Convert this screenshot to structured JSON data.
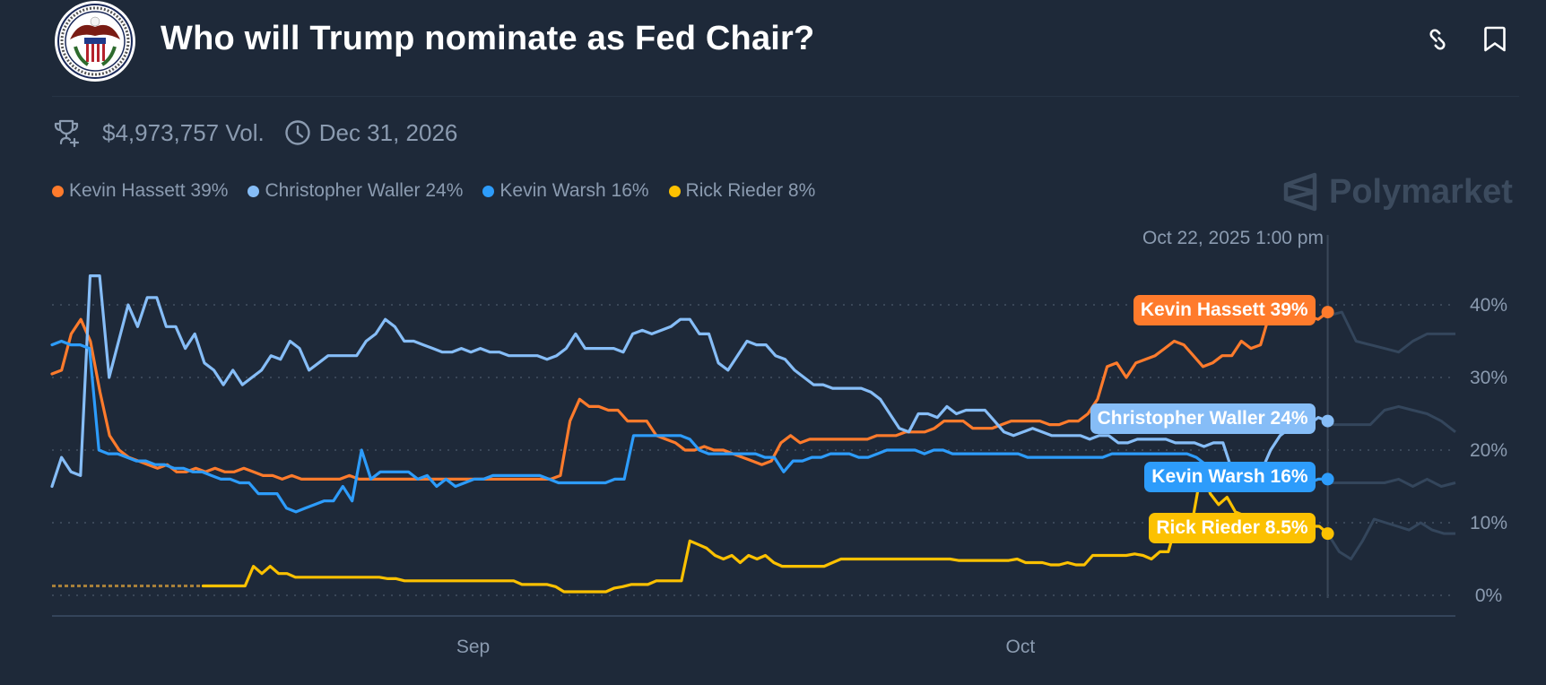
{
  "header": {
    "title": "Who will Trump nominate as Fed Chair?",
    "logo_alt": "Board of Governors of the Federal Reserve System seal",
    "icons": [
      "link-icon",
      "bookmark-icon"
    ]
  },
  "meta": {
    "volume": "$4,973,757 Vol.",
    "end_date": "Dec 31, 2026",
    "icons": [
      "trophy-icon",
      "clock-icon"
    ]
  },
  "brand": {
    "name": "Polymarket"
  },
  "legend": [
    {
      "label": "Kevin Hassett 39%",
      "color": "#ff7b2c"
    },
    {
      "label": "Christopher Waller 24%",
      "color": "#86bdf7"
    },
    {
      "label": "Kevin Warsh 16%",
      "color": "#2d9cfb"
    },
    {
      "label": "Rick Rieder 8%",
      "color": "#fcc101"
    }
  ],
  "crosshair": {
    "date": "Oct 22, 2025 1:00 pm",
    "tags": [
      {
        "label": "Kevin Hassett 39%",
        "color": "#ff7b2c",
        "value": 39
      },
      {
        "label": "Christopher Waller 24%",
        "color": "#86bdf7",
        "value": 24
      },
      {
        "label": "Kevin Warsh 16%",
        "color": "#2d9cfb",
        "value": 16
      },
      {
        "label": "Rick Rieder 8.5%",
        "color": "#fcc101",
        "value": 8.5
      }
    ]
  },
  "chart_data": {
    "type": "line",
    "title": "Who will Trump nominate as Fed Chair?",
    "xlabel": "",
    "ylabel": "",
    "ylim": [
      0,
      42
    ],
    "yticks": [
      "0%",
      "10%",
      "20%",
      "30%",
      "40%"
    ],
    "ytick_values": [
      0,
      10,
      20,
      30,
      40
    ],
    "xticks": [
      "Sep",
      "Oct"
    ],
    "xtick_positions": [
      0.3,
      0.69
    ],
    "grid": true,
    "legend_position": "top-left",
    "crosshair_fraction": 0.909,
    "series": [
      {
        "name": "Kevin Hassett",
        "color": "#ff7b2c",
        "values": [
          30.5,
          31,
          36,
          38,
          35,
          28,
          22,
          20,
          19,
          18.5,
          18,
          17.5,
          18,
          17,
          17,
          17.5,
          17,
          17.5,
          17,
          17,
          17.5,
          17,
          16.5,
          16.5,
          16,
          16.5,
          16,
          16,
          16,
          16,
          16,
          16.5,
          16,
          16,
          16,
          16,
          16,
          16,
          16,
          16,
          16,
          16,
          16,
          16,
          16,
          16,
          16,
          16,
          16,
          16,
          16,
          16,
          16,
          16.5,
          24,
          27,
          26,
          26,
          25.5,
          25.5,
          24,
          24,
          24,
          22,
          21.5,
          21,
          20,
          20,
          20.5,
          20,
          20,
          19.5,
          19,
          18.5,
          18,
          18.5,
          21,
          22,
          21,
          21.5,
          21.5,
          21.5,
          21.5,
          21.5,
          21.5,
          21.5,
          22,
          22,
          22,
          22.5,
          22.5,
          22.5,
          23,
          24,
          24,
          24,
          23,
          23,
          23,
          23.5,
          24,
          24,
          24,
          24,
          23.5,
          23.5,
          24,
          24,
          25,
          27,
          31.5,
          32,
          30,
          32,
          32.5,
          33,
          34,
          35,
          34.5,
          33,
          31.5,
          32,
          33,
          33,
          35,
          34,
          34.5,
          39,
          39,
          39,
          39,
          38.5,
          38,
          39
        ],
        "after_values": [
          38.5,
          39,
          35,
          34.5,
          34,
          33.5,
          35,
          36,
          36,
          36
        ]
      },
      {
        "name": "Christopher Waller",
        "color": "#86bdf7",
        "values": [
          15,
          19,
          17,
          16.5,
          44,
          44,
          30,
          35,
          40,
          37,
          41,
          41,
          37,
          37,
          34,
          36,
          32,
          31,
          29,
          31,
          29,
          30,
          31,
          33,
          32.5,
          35,
          34,
          31,
          32,
          33,
          33,
          33,
          33,
          35,
          36,
          38,
          37,
          35,
          35,
          34.5,
          34,
          33.5,
          33.5,
          34,
          33.5,
          34,
          33.5,
          33.5,
          33,
          33,
          33,
          33,
          32.5,
          33,
          34,
          36,
          34,
          34,
          34,
          34,
          33.5,
          36,
          36.5,
          36,
          36.5,
          37,
          38,
          38,
          36,
          36,
          32,
          31,
          33,
          35,
          34.5,
          34.5,
          33,
          32.5,
          31,
          30,
          29,
          29,
          28.5,
          28.5,
          28.5,
          28.5,
          28,
          27,
          25,
          23,
          22.5,
          25,
          25,
          24.5,
          26,
          25,
          25.5,
          25.5,
          25.5,
          24,
          22.5,
          22,
          22.5,
          23,
          22.5,
          22,
          22,
          22,
          22,
          21.5,
          22,
          22,
          21,
          21,
          21.5,
          21.5,
          21.5,
          21.5,
          21,
          21,
          21,
          20.5,
          21,
          21,
          17,
          15,
          15,
          17,
          20,
          22,
          23,
          23,
          23.5,
          24.5,
          24
        ],
        "after_values": [
          23.5,
          23.5,
          23.5,
          23.5,
          25.5,
          26,
          25.5,
          25,
          24,
          22.5
        ]
      },
      {
        "name": "Kevin Warsh",
        "color": "#2d9cfb",
        "values": [
          34.5,
          35,
          34.5,
          34.5,
          34,
          20,
          19.5,
          19.5,
          19,
          18.5,
          18.5,
          18,
          18,
          17.5,
          17.5,
          17,
          17,
          16.5,
          16,
          16,
          15.5,
          15.5,
          14,
          14,
          14,
          12,
          11.5,
          12,
          12.5,
          13,
          13,
          15,
          13,
          20,
          16,
          17,
          17,
          17,
          17,
          16,
          16.5,
          15,
          16,
          15,
          15.5,
          16,
          16,
          16.5,
          16.5,
          16.5,
          16.5,
          16.5,
          16.5,
          16,
          15.5,
          15.5,
          15.5,
          15.5,
          15.5,
          15.5,
          16,
          16,
          22,
          22,
          22,
          22,
          22,
          22,
          21.5,
          20,
          19.5,
          19.5,
          19.5,
          19.5,
          19.5,
          19.5,
          19,
          19,
          17,
          18.5,
          18.5,
          19,
          19,
          19.5,
          19.5,
          19.5,
          19,
          19,
          19.5,
          20,
          20,
          20,
          20,
          19.5,
          20,
          20,
          19.5,
          19.5,
          19.5,
          19.5,
          19.5,
          19.5,
          19.5,
          19.5,
          19,
          19,
          19,
          19,
          19,
          19,
          19,
          19,
          19,
          19.5,
          19.5,
          19.5,
          19.5,
          19.5,
          19.5,
          19.5,
          19.5,
          19.5,
          19,
          18,
          17,
          16,
          16,
          16,
          15.5,
          16,
          16,
          16,
          16,
          15.5,
          15.5,
          16,
          16
        ],
        "after_values": [
          15.5,
          15.5,
          15.5,
          15.5,
          15.5,
          16,
          15,
          16,
          15,
          15.5
        ]
      },
      {
        "name": "Rick Rieder",
        "color": "#fcc101",
        "values": [
          null,
          null,
          null,
          null,
          null,
          null,
          null,
          null,
          null,
          null,
          null,
          null,
          null,
          null,
          null,
          null,
          null,
          null,
          1.3,
          1.3,
          1.3,
          1.3,
          1.3,
          1.3,
          4,
          3,
          4,
          3,
          3,
          2.5,
          2.5,
          2.5,
          2.5,
          2.5,
          2.5,
          2.5,
          2.5,
          2.5,
          2.5,
          2.5,
          2.3,
          2.3,
          2,
          2,
          2,
          2,
          2,
          2,
          2,
          2,
          2,
          2,
          2,
          2,
          2,
          2,
          1.5,
          1.5,
          1.5,
          1.5,
          1.2,
          0.5,
          0.5,
          0.5,
          0.5,
          0.5,
          0.5,
          1,
          1.2,
          1.5,
          1.5,
          1.5,
          2,
          2,
          2,
          2,
          7.5,
          7,
          6.5,
          5.5,
          5,
          5.5,
          4.5,
          5.5,
          5,
          5.5,
          4.5,
          4,
          4,
          4,
          4,
          4,
          4,
          4.5,
          5,
          5,
          5,
          5,
          5,
          5,
          5,
          5,
          5,
          5,
          5,
          5,
          5,
          5,
          4.8,
          4.8,
          4.8,
          4.8,
          4.8,
          4.8,
          4.8,
          5,
          4.5,
          4.5,
          4.5,
          4.2,
          4.2,
          4.5,
          4.2,
          4.2,
          5.5,
          5.5,
          5.5,
          5.5,
          5.5,
          5.7,
          5.5,
          5,
          6,
          6,
          10,
          9.5,
          11,
          17.5,
          14,
          12.5,
          13.5,
          11.5,
          11,
          10.5,
          10.5,
          10,
          10,
          10,
          10,
          9.5,
          9.5,
          9.5,
          8.5
        ],
        "after_values": [
          8.5,
          6,
          5,
          7.5,
          10.5,
          10,
          9.5,
          9,
          10,
          9,
          8.5,
          8.5
        ],
        "dashed_start_prefix": true
      }
    ]
  },
  "axis": {
    "x_ticks": [
      {
        "label": "Sep"
      },
      {
        "label": "Oct"
      }
    ],
    "y_ticks": [
      {
        "label": "40%"
      },
      {
        "label": "30%"
      },
      {
        "label": "20%"
      },
      {
        "label": "10%"
      },
      {
        "label": "0%"
      }
    ]
  }
}
